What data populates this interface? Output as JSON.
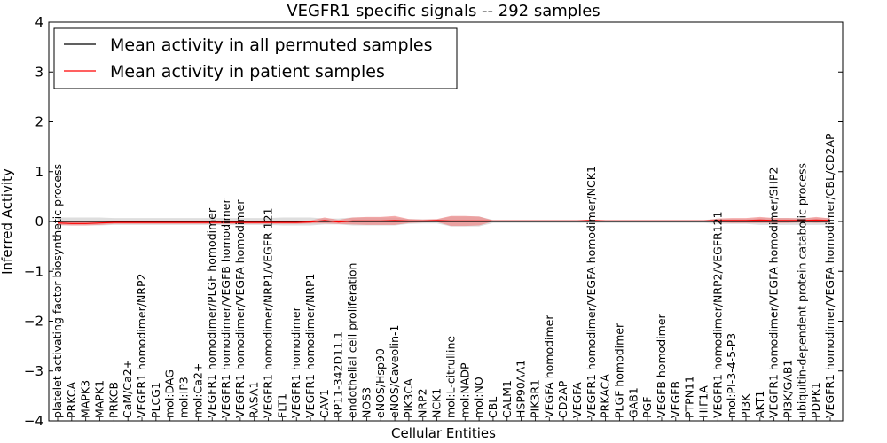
{
  "chart_data": {
    "type": "line",
    "title": "VEGFR1 specific signals -- 292 samples",
    "xlabel": "Cellular Entities",
    "ylabel": "Inferred Activity",
    "ylim": [
      -4,
      4
    ],
    "yticks": [
      "−4",
      "−3",
      "−2",
      "−1",
      "0",
      "1",
      "2",
      "3",
      "4"
    ],
    "grid": false,
    "legend_position": "top-left",
    "categories": [
      "platelet activating factor biosynthetic process",
      "PRKCA",
      "MAPK3",
      "MAPK1",
      "PRKCB",
      "CaM/Ca2+",
      "VEGFR1 homodimer/NRP2",
      "PLCG1",
      "mol:DAG",
      "mol:IP3",
      "mol:Ca2+",
      "VEGFR1 homodimer/PLGF homodimer",
      "VEGFR1 homodimer/VEGFB homodimer",
      "VEGFR1 homodimer/VEGFA homodimer",
      "RASA1",
      "VEGFR1 homodimer/NRP1/VEGFR 121",
      "FLT1",
      "VEGFR1 homodimer",
      "VEGFR1 homodimer/NRP1",
      "CAV1",
      "RP11-342D11.1",
      "endothelial cell proliferation",
      "NOS3",
      "eNOS/Hsp90",
      "eNOS/Caveolin-1",
      "PIK3CA",
      "NRP2",
      "NCK1",
      "mol:L-citrulline",
      "mol:NADP",
      "mol:NO",
      "CBL",
      "CALM1",
      "HSP90AA1",
      "PIK3R1",
      "VEGFA homodimer",
      "CD2AP",
      "VEGFA",
      "VEGFR1 homodimer/VEGFA homodimer/NCK1",
      "PRKACA",
      "PLGF homodimer",
      "GAB1",
      "PGF",
      "VEGFB homodimer",
      "VEGFB",
      "PTPN11",
      "HIF1A",
      "VEGFR1 homodimer/NRP2/VEGFR121",
      "mol:PI-3-4-5-P3",
      "PI3K",
      "AKT1",
      "VEGFR1 homodimer/VEGFA homodimer/SHP2",
      "PI3K/GAB1",
      "ubiquitin-dependent protein catabolic process",
      "PDPK1",
      "VEGFR1 homodimer/VEGFA homodimer/CBL/CD2AP"
    ],
    "series": [
      {
        "name": "Mean activity in all permuted samples",
        "color": "#000000",
        "values": [
          0,
          0,
          0,
          0,
          0,
          0,
          0,
          0,
          0,
          0,
          0,
          0,
          0,
          0,
          0,
          0,
          0,
          0,
          0,
          0,
          0,
          0,
          0,
          0,
          0,
          0,
          0,
          0,
          0,
          0,
          0,
          0,
          0,
          0,
          0,
          0,
          0,
          0,
          0,
          0,
          0,
          0,
          0,
          0,
          0,
          0,
          0,
          0,
          0,
          0,
          0,
          0,
          0,
          0,
          0,
          0
        ],
        "band_halfwidth": [
          0.08,
          0.08,
          0.08,
          0.08,
          0.07,
          0.07,
          0.07,
          0.07,
          0.07,
          0.07,
          0.07,
          0.07,
          0.07,
          0.07,
          0.07,
          0.07,
          0.08,
          0.08,
          0.08,
          0.06,
          0.06,
          0.08,
          0.08,
          0.08,
          0.08,
          0.05,
          0.04,
          0.04,
          0.1,
          0.1,
          0.1,
          0.03,
          0.03,
          0.03,
          0.03,
          0.03,
          0.03,
          0.03,
          0.03,
          0.03,
          0.03,
          0.03,
          0.03,
          0.03,
          0.03,
          0.03,
          0.03,
          0.05,
          0.05,
          0.05,
          0.07,
          0.07,
          0.07,
          0.07,
          0.07,
          0.07
        ]
      },
      {
        "name": "Mean activity in patient samples",
        "color": "#ff0000",
        "band_color": "#f08080",
        "values": [
          -0.03,
          -0.04,
          -0.04,
          -0.03,
          -0.02,
          -0.02,
          -0.02,
          -0.02,
          -0.02,
          -0.02,
          -0.02,
          -0.02,
          -0.02,
          -0.02,
          -0.02,
          -0.02,
          -0.02,
          -0.02,
          -0.01,
          0.02,
          -0.01,
          0.01,
          0.01,
          0.01,
          0.02,
          0.01,
          0.01,
          0.02,
          0.01,
          0.01,
          0.01,
          0.01,
          0.01,
          0.01,
          0.01,
          0.01,
          0.01,
          0.01,
          0.02,
          0.01,
          0.01,
          0.01,
          0.01,
          0.01,
          0.01,
          0.01,
          0.01,
          0.02,
          0.02,
          0.02,
          0.03,
          0.02,
          0.02,
          0.02,
          0.03,
          0.02
        ],
        "band_halfwidth": [
          0.04,
          0.04,
          0.04,
          0.04,
          0.03,
          0.03,
          0.03,
          0.03,
          0.03,
          0.03,
          0.03,
          0.03,
          0.03,
          0.03,
          0.03,
          0.03,
          0.03,
          0.03,
          0.03,
          0.06,
          0.04,
          0.07,
          0.08,
          0.08,
          0.09,
          0.04,
          0.03,
          0.03,
          0.1,
          0.1,
          0.09,
          0.01,
          0.01,
          0.01,
          0.01,
          0.01,
          0.01,
          0.01,
          0.02,
          0.01,
          0.01,
          0.01,
          0.01,
          0.01,
          0.01,
          0.01,
          0.01,
          0.04,
          0.05,
          0.05,
          0.06,
          0.05,
          0.05,
          0.04,
          0.06,
          0.04
        ]
      }
    ]
  }
}
